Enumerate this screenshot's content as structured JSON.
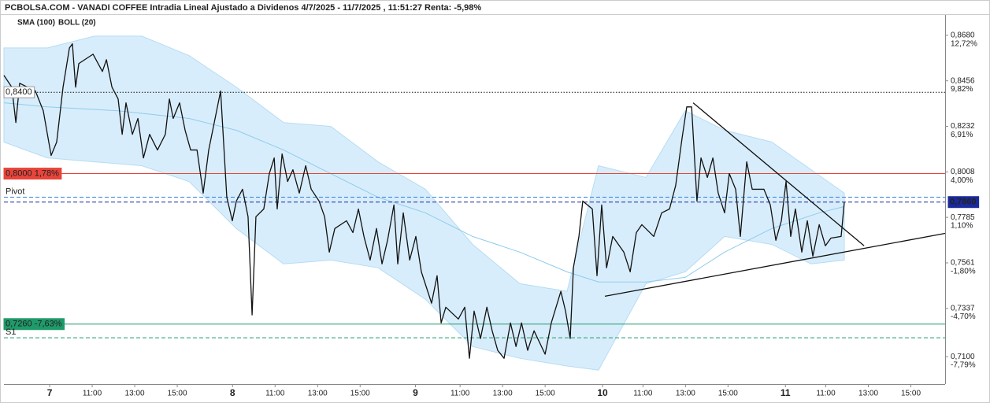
{
  "chart_data": {
    "type": "line",
    "title": "PCBOLSA.COM - VANADI COFFEE Intradia Lineal Ajustado a Dividenos 4/7/2025 - 11/7/2025 , 11:51:27 Renta: -5,98%",
    "xlim": [
      -2.15,
      42.11
    ],
    "ylim": [
      0.6965,
      0.878
    ],
    "y2lim": [
      -9.55,
      14.02
    ],
    "xticks": [
      {
        "value": 0,
        "label": "7"
      },
      {
        "value": 2,
        "label": "11:00"
      },
      {
        "value": 4,
        "label": "13:00"
      },
      {
        "value": 6,
        "label": "15:00"
      },
      {
        "value": 8.6,
        "label": "8"
      },
      {
        "value": 10.6,
        "label": "11:00"
      },
      {
        "value": 12.6,
        "label": "13:00"
      },
      {
        "value": 14.6,
        "label": "15:00"
      },
      {
        "value": 17.2,
        "label": "9"
      },
      {
        "value": 19.3,
        "label": "11:00"
      },
      {
        "value": 21.3,
        "label": "13:00"
      },
      {
        "value": 23.3,
        "label": "15:00"
      },
      {
        "value": 26,
        "label": "10"
      },
      {
        "value": 27.9,
        "label": "11:00"
      },
      {
        "value": 29.9,
        "label": "13:00"
      },
      {
        "value": 31.9,
        "label": "15:00"
      },
      {
        "value": 34.6,
        "label": "11"
      },
      {
        "value": 36.5,
        "label": "11:00"
      },
      {
        "value": 38.5,
        "label": "13:00"
      },
      {
        "value": 40.5,
        "label": "15:00"
      }
    ],
    "yticks": [
      {
        "value": 0.868,
        "label": "0,8680"
      },
      {
        "value": 0.8456,
        "label": "0,8456"
      },
      {
        "value": 0.8232,
        "label": "0,8232"
      },
      {
        "value": 0.8008,
        "label": "0,8008"
      },
      {
        "value": 0.7785,
        "label": "0,7785"
      },
      {
        "value": 0.7561,
        "label": "0,7561"
      },
      {
        "value": 0.7337,
        "label": "0,7337"
      },
      {
        "value": 0.71,
        "label": "0,7100"
      }
    ],
    "y2ticks": [
      {
        "value": 12.72,
        "label": "12,72%"
      },
      {
        "value": 9.82,
        "label": "9,82%"
      },
      {
        "value": 6.91,
        "label": "6,91%"
      },
      {
        "value": 4.0,
        "label": "4,00%"
      },
      {
        "value": 1.1,
        "label": "1,10%"
      },
      {
        "value": -1.8,
        "label": "-1,80%"
      },
      {
        "value": -4.7,
        "label": "-4,70%"
      },
      {
        "value": -7.79,
        "label": "-7,79%"
      }
    ],
    "price": {
      "color": "#111111",
      "x": [
        -2.15,
        -1.78,
        -1.59,
        -1.41,
        -0.67,
        -0.3,
        0.07,
        0.33,
        0.63,
        0.93,
        1.07,
        1.22,
        1.37,
        2.04,
        2.48,
        2.67,
        2.93,
        3.22,
        3.41,
        3.59,
        3.89,
        4.15,
        4.41,
        4.7,
        5.07,
        5.44,
        5.63,
        5.81,
        6.11,
        6.37,
        6.63,
        6.93,
        7.22,
        7.48,
        8.04,
        8.33,
        8.59,
        8.78,
        9.07,
        9.33,
        9.52,
        9.7,
        10.07,
        10.33,
        10.56,
        10.7,
        10.93,
        11.19,
        11.44,
        11.74,
        12.04,
        12.3,
        12.67,
        12.93,
        13.15,
        13.41,
        13.96,
        14.26,
        14.52,
        14.78,
        15.07,
        15.37,
        15.63,
        15.89,
        16.19,
        16.37,
        16.63,
        16.93,
        17.22,
        17.48,
        17.96,
        18.22,
        18.41,
        18.63,
        19.22,
        19.52,
        19.74,
        19.96,
        20.26,
        20.56,
        20.81,
        21.07,
        21.37,
        21.67,
        21.93,
        22.19,
        22.48,
        22.78,
        23.3,
        23.59,
        24.04,
        24.26,
        24.48,
        24.63,
        24.89,
        25.07,
        25.52,
        25.74,
        25.96,
        26.19,
        26.48,
        27.0,
        27.3,
        27.59,
        27.85,
        28.41,
        28.78,
        29.15,
        29.44,
        29.74,
        29.96,
        30.19,
        30.44,
        30.63,
        30.93,
        31.19,
        31.44,
        31.74,
        31.96,
        32.26,
        32.48,
        32.78,
        33.04,
        33.59,
        33.89,
        34.15,
        34.41,
        34.63,
        34.85,
        35.07,
        35.37,
        35.63,
        35.89,
        36.19,
        36.48,
        36.74,
        37.22,
        37.37
      ],
      "values": [
        0.8483,
        0.8425,
        0.8251,
        0.8444,
        0.8406,
        0.8309,
        0.8089,
        0.8155,
        0.8425,
        0.8618,
        0.8638,
        0.8425,
        0.8541,
        0.8587,
        0.8502,
        0.856,
        0.8425,
        0.8367,
        0.8193,
        0.8348,
        0.8193,
        0.8271,
        0.8077,
        0.8193,
        0.8116,
        0.8193,
        0.8367,
        0.8271,
        0.8348,
        0.8213,
        0.8116,
        0.8116,
        0.7904,
        0.8116,
        0.8406,
        0.7884,
        0.7768,
        0.7865,
        0.7923,
        0.7788,
        0.7305,
        0.7788,
        0.7826,
        0.8,
        0.8077,
        0.7826,
        0.8097,
        0.7961,
        0.8019,
        0.7904,
        0.8039,
        0.7923,
        0.7865,
        0.7788,
        0.7614,
        0.773,
        0.7768,
        0.771,
        0.7826,
        0.7691,
        0.7575,
        0.773,
        0.7556,
        0.7672,
        0.7846,
        0.7556,
        0.7807,
        0.7575,
        0.7691,
        0.7517,
        0.7363,
        0.7498,
        0.7266,
        0.7343,
        0.7285,
        0.7343,
        0.7092,
        0.7324,
        0.7189,
        0.7343,
        0.7227,
        0.7131,
        0.7092,
        0.7266,
        0.715,
        0.7266,
        0.7131,
        0.7227,
        0.7112,
        0.7266,
        0.7421,
        0.7324,
        0.7189,
        0.7537,
        0.7691,
        0.7865,
        0.7826,
        0.7498,
        0.7846,
        0.7537,
        0.7691,
        0.7614,
        0.7517,
        0.771,
        0.7749,
        0.7691,
        0.7807,
        0.7826,
        0.7942,
        0.8174,
        0.8328,
        0.8328,
        0.7865,
        0.8077,
        0.7981,
        0.8077,
        0.7904,
        0.7807,
        0.8,
        0.7923,
        0.7691,
        0.8058,
        0.7923,
        0.7923,
        0.7846,
        0.7672,
        0.7768,
        0.7961,
        0.7691,
        0.7826,
        0.7614,
        0.7768,
        0.7594,
        0.7749,
        0.7645,
        0.7683,
        0.7691,
        0.786
      ]
    },
    "series": [
      {
        "name": "SMA (100)",
        "color": "#8ecbee",
        "x": [
          -2.15,
          -0.11,
          3.22,
          6.56,
          8.78,
          11.0,
          13.22,
          15.44,
          17.67,
          19.89,
          22.11,
          24.33,
          25.81,
          28.04,
          29.89,
          31.74,
          33.96,
          36.19,
          37.37
        ],
        "values": [
          0.8348,
          0.8328,
          0.8309,
          0.8271,
          0.8213,
          0.8116,
          0.8,
          0.7884,
          0.7807,
          0.7691,
          0.7614,
          0.7517,
          0.7467,
          0.7467,
          0.749,
          0.7614,
          0.773,
          0.7807,
          0.7838
        ]
      }
    ],
    "bands": [
      {
        "name": "BOLL (20)",
        "color": "#bfc4c8",
        "fill": "#d8edfb",
        "x": [
          -2.15,
          -0.11,
          2.11,
          4.33,
          6.56,
          8.78,
          11.0,
          13.22,
          15.44,
          17.67,
          19.89,
          22.11,
          24.33,
          25.81,
          28.04,
          29.89,
          31.74,
          33.96,
          35.81,
          37.37
        ],
        "upper": [
          0.8618,
          0.8618,
          0.8676,
          0.8676,
          0.858,
          0.8425,
          0.8251,
          0.8232,
          0.8058,
          0.7923,
          0.7652,
          0.7459,
          0.7421,
          0.8039,
          0.7981,
          0.8309,
          0.8213,
          0.8155,
          0.8019,
          0.7904
        ],
        "lower": [
          0.8155,
          0.8077,
          0.8058,
          0.8039,
          0.7961,
          0.773,
          0.7556,
          0.7575,
          0.7537,
          0.7382,
          0.715,
          0.7092,
          0.7054,
          0.7034,
          0.7459,
          0.7517,
          0.7691,
          0.7652,
          0.7556,
          0.7575
        ]
      }
    ],
    "trendlines": [
      {
        "color": "#111111",
        "x": [
          30.26,
          38.3
        ],
        "values": [
          0.8348,
          0.7645
        ]
      },
      {
        "color": "#111111",
        "x": [
          26.11,
          42.11
        ],
        "values": [
          0.7397,
          0.7706
        ]
      }
    ],
    "levels": [
      {
        "value": 0.84,
        "label": "0,8400",
        "color": "#111111",
        "style": "dotted",
        "box": "#ffffff",
        "side": "left"
      },
      {
        "value": 0.8,
        "label": "0,8000  1,78%",
        "color": "#e8443a",
        "style": "solid",
        "box": "#e8443a",
        "side": "left"
      },
      {
        "value": 0.7884,
        "label": "Pivot",
        "color": "#2f7fd6",
        "style": "dashed",
        "box": null,
        "side": "left"
      },
      {
        "value": 0.786,
        "label": "0,7860",
        "color": "#1a2a9c",
        "style": "dashed",
        "box": "#1a2a9c",
        "side": "right"
      },
      {
        "value": 0.726,
        "label": "0,7260  -7,63%",
        "color": "#1f9a6a",
        "style": "solid",
        "box": "#1f9a6a",
        "side": "left"
      },
      {
        "value": 0.7193,
        "label": "S1",
        "color": "#1f9a6a",
        "style": "dashed",
        "box": null,
        "side": "left"
      }
    ]
  }
}
